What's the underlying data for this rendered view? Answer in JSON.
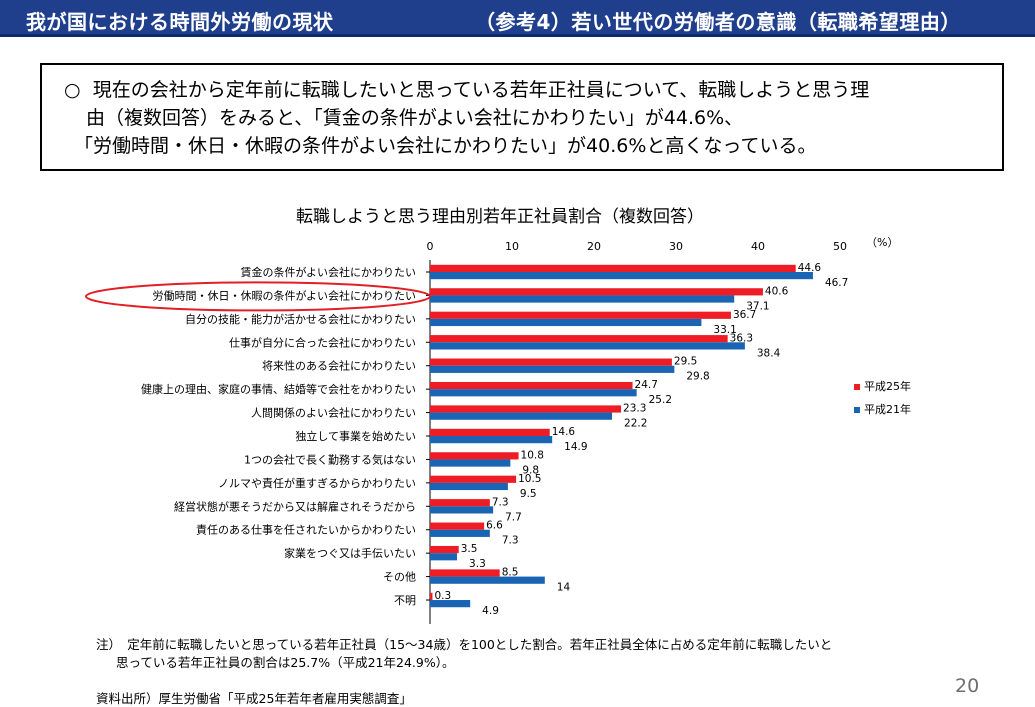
{
  "header": {
    "title": "我が国における時間外労働の現状",
    "subtitle": "（参考4）若い世代の労働者の意識（転職希望理由）"
  },
  "summary": {
    "bullet": "○",
    "line1": "現在の会社から定年前に転職したいと思っている若年正社員について、転職しようと思う理",
    "line2": "由（複数回答）をみると、「賃金の条件がよい会社にかわりたい」が44.6%、",
    "line3": "「労働時間・休日・休暇の条件がよい会社にかわりたい」が40.6%と高くなっている。"
  },
  "chart_data": {
    "type": "bar",
    "orientation": "horizontal",
    "title": "転職しようと思う理由別若年正社員割合（複数回答）",
    "unit": "（%）",
    "xlim": [
      0,
      50
    ],
    "xticks": [
      0,
      10,
      20,
      30,
      40,
      50
    ],
    "legend_position": "right",
    "highlighted_category": "労働時間・休日・休暇の条件がよい会社にかわりたい",
    "categories": [
      "賃金の条件がよい会社にかわりたい",
      "労働時間・休日・休暇の条件がよい会社にかわりたい",
      "自分の技能・能力が活かせる会社にかわりたい",
      "仕事が自分に合った会社にかわりたい",
      "将来性のある会社にかわりたい",
      "健康上の理由、家庭の事情、結婚等で会社をかわりたい",
      "人間関係のよい会社にかわりたい",
      "独立して事業を始めたい",
      "1つの会社で長く勤務する気はない",
      "ノルマや責任が重すぎるからかわりたい",
      "経営状態が悪そうだから又は解雇されそうだから",
      "責任のある仕事を任されたいからかわりたい",
      "家業をつぐ又は手伝いたい",
      "その他",
      "不明"
    ],
    "series": [
      {
        "name": "平成25年",
        "color": "#ee1c25",
        "values": [
          44.6,
          40.6,
          36.7,
          36.3,
          29.5,
          24.7,
          23.3,
          14.6,
          10.8,
          10.5,
          7.3,
          6.6,
          3.5,
          8.5,
          0.3
        ],
        "labels": [
          "44.6",
          "40.6",
          "36.7",
          "36.3",
          "29.5",
          "24.7",
          "23.3",
          "14.6",
          "10.8",
          "10.5",
          "7.3",
          "6.6",
          "3.5",
          "8.5",
          "0.3"
        ]
      },
      {
        "name": "平成21年",
        "color": "#1a64b4",
        "values": [
          46.7,
          37.1,
          33.1,
          38.4,
          29.8,
          25.2,
          22.2,
          14.9,
          9.8,
          9.5,
          7.7,
          7.3,
          3.3,
          14,
          4.9
        ],
        "labels": [
          "46.7",
          "37.1",
          "33.1",
          "38.4",
          "29.8",
          "25.2",
          "22.2",
          "14.9",
          "9.8",
          "9.5",
          "7.7",
          "7.3",
          "3.3",
          "14",
          "4.9"
        ]
      }
    ]
  },
  "note": {
    "line1": "注）　定年前に転職したいと思っている若年正社員（15～34歳）を100とした割合。若年正社員全体に占める定年前に転職したいと",
    "line2": "思っている若年正社員の割合は25.7%（平成21年24.9%）。"
  },
  "source": "資料出所）厚生労働省「平成25年若年者雇用実態調査」",
  "page_number": "20"
}
